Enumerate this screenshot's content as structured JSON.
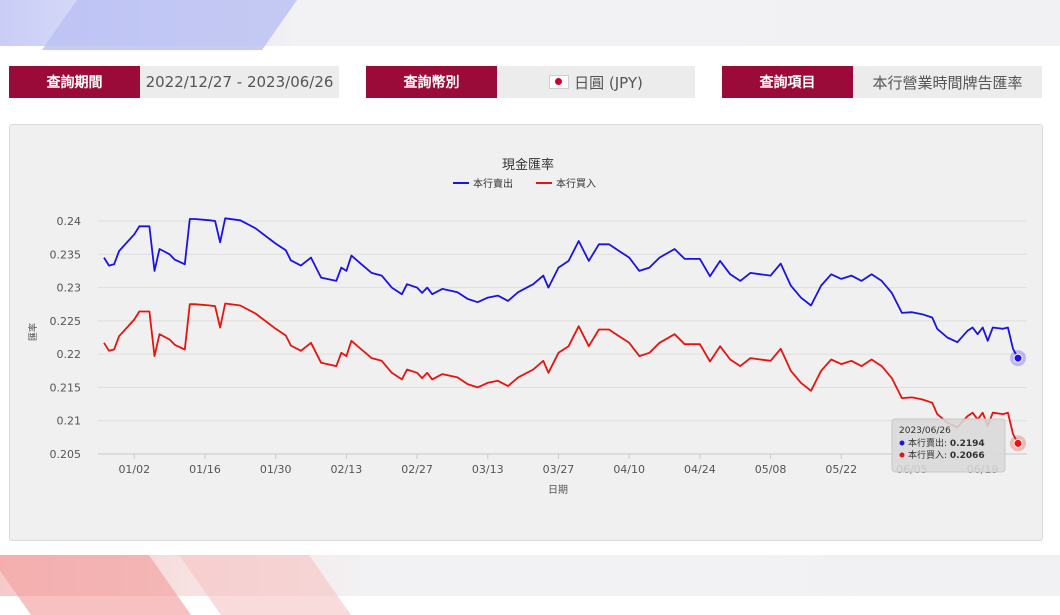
{
  "query": {
    "period_label": "查詢期間",
    "period_value": "2022/12/27 - 2023/06/26",
    "currency_label": "查詢幣別",
    "currency_value": "日圓 (JPY)",
    "item_label": "查詢項目",
    "item_value": "本行營業時間牌告匯率"
  },
  "colors": {
    "label_bg": "#9b0b3a",
    "sell": "#1a12e8",
    "buy": "#e8130f"
  },
  "chart_data": {
    "type": "line",
    "title": "現金匯率",
    "xlabel": "日期",
    "ylabel": "匯率",
    "ylim": [
      0.205,
      0.24
    ],
    "yticks": [
      "0.24",
      "0.235",
      "0.23",
      "0.225",
      "0.22",
      "0.215",
      "0.21",
      "0.205"
    ],
    "xticks": [
      "01/02",
      "01/16",
      "01/30",
      "02/13",
      "02/27",
      "03/13",
      "03/27",
      "04/10",
      "04/24",
      "05/08",
      "05/22",
      "06/05",
      "06/19"
    ],
    "grid": true,
    "legend_position": "top-center",
    "series": [
      {
        "name": "本行賣出",
        "color": "#1a12e8",
        "points": [
          [
            "2022/12/27",
            0.2345
          ],
          [
            "2022/12/28",
            0.2333
          ],
          [
            "2022/12/29",
            0.2335
          ],
          [
            "2022/12/30",
            0.2355
          ],
          [
            "2023/01/02",
            0.238
          ],
          [
            "2023/01/03",
            0.2392
          ],
          [
            "2023/01/05",
            0.2392
          ],
          [
            "2023/01/06",
            0.2325
          ],
          [
            "2023/01/07",
            0.2358
          ],
          [
            "2023/01/09",
            0.235
          ],
          [
            "2023/01/10",
            0.2342
          ],
          [
            "2023/01/12",
            0.2335
          ],
          [
            "2023/01/13",
            0.2403
          ],
          [
            "2023/01/14",
            0.2403
          ],
          [
            "2023/01/17",
            0.2401
          ],
          [
            "2023/01/18",
            0.24
          ],
          [
            "2023/01/19",
            0.2368
          ],
          [
            "2023/01/20",
            0.2404
          ],
          [
            "2023/01/23",
            0.2401
          ],
          [
            "2023/01/26",
            0.2389
          ],
          [
            "2023/01/30",
            0.2366
          ],
          [
            "2023/02/01",
            0.2356
          ],
          [
            "2023/02/02",
            0.2341
          ],
          [
            "2023/02/04",
            0.2333
          ],
          [
            "2023/02/06",
            0.2345
          ],
          [
            "2023/02/08",
            0.2315
          ],
          [
            "2023/02/11",
            0.231
          ],
          [
            "2023/02/12",
            0.233
          ],
          [
            "2023/02/13",
            0.2325
          ],
          [
            "2023/02/14",
            0.2348
          ],
          [
            "2023/02/16",
            0.2335
          ],
          [
            "2023/02/18",
            0.2322
          ],
          [
            "2023/02/20",
            0.2318
          ],
          [
            "2023/02/22",
            0.23
          ],
          [
            "2023/02/24",
            0.229
          ],
          [
            "2023/02/25",
            0.2305
          ],
          [
            "2023/02/27",
            0.23
          ],
          [
            "2023/02/28",
            0.2292
          ],
          [
            "2023/03/01",
            0.23
          ],
          [
            "2023/03/02",
            0.229
          ],
          [
            "2023/03/04",
            0.2298
          ],
          [
            "2023/03/07",
            0.2293
          ],
          [
            "2023/03/09",
            0.2283
          ],
          [
            "2023/03/11",
            0.2278
          ],
          [
            "2023/03/13",
            0.2285
          ],
          [
            "2023/03/15",
            0.2288
          ],
          [
            "2023/03/17",
            0.228
          ],
          [
            "2023/03/19",
            0.2293
          ],
          [
            "2023/03/22",
            0.2305
          ],
          [
            "2023/03/24",
            0.2318
          ],
          [
            "2023/03/25",
            0.23
          ],
          [
            "2023/03/27",
            0.233
          ],
          [
            "2023/03/29",
            0.234
          ],
          [
            "2023/03/31",
            0.237
          ],
          [
            "2023/04/02",
            0.234
          ],
          [
            "2023/04/04",
            0.2365
          ],
          [
            "2023/04/06",
            0.2365
          ],
          [
            "2023/04/08",
            0.2355
          ],
          [
            "2023/04/10",
            0.2345
          ],
          [
            "2023/04/12",
            0.2325
          ],
          [
            "2023/04/14",
            0.233
          ],
          [
            "2023/04/16",
            0.2345
          ],
          [
            "2023/04/19",
            0.2358
          ],
          [
            "2023/04/21",
            0.2343
          ],
          [
            "2023/04/24",
            0.2343
          ],
          [
            "2023/04/26",
            0.2317
          ],
          [
            "2023/04/28",
            0.234
          ],
          [
            "2023/04/30",
            0.232
          ],
          [
            "2023/05/02",
            0.231
          ],
          [
            "2023/05/04",
            0.2322
          ],
          [
            "2023/05/06",
            0.232
          ],
          [
            "2023/05/08",
            0.2318
          ],
          [
            "2023/05/10",
            0.2336
          ],
          [
            "2023/05/12",
            0.2303
          ],
          [
            "2023/05/14",
            0.2285
          ],
          [
            "2023/05/16",
            0.2273
          ],
          [
            "2023/05/18",
            0.2303
          ],
          [
            "2023/05/20",
            0.232
          ],
          [
            "2023/05/22",
            0.2313
          ],
          [
            "2023/05/24",
            0.2318
          ],
          [
            "2023/05/26",
            0.231
          ],
          [
            "2023/05/28",
            0.232
          ],
          [
            "2023/05/30",
            0.231
          ],
          [
            "2023/06/01",
            0.2292
          ],
          [
            "2023/06/03",
            0.2262
          ],
          [
            "2023/06/05",
            0.2263
          ],
          [
            "2023/06/07",
            0.226
          ],
          [
            "2023/06/09",
            0.2255
          ],
          [
            "2023/06/10",
            0.2238
          ],
          [
            "2023/06/12",
            0.2225
          ],
          [
            "2023/06/14",
            0.2218
          ],
          [
            "2023/06/16",
            0.2235
          ],
          [
            "2023/06/17",
            0.224
          ],
          [
            "2023/06/18",
            0.223
          ],
          [
            "2023/06/19",
            0.224
          ],
          [
            "2023/06/20",
            0.222
          ],
          [
            "2023/06/21",
            0.224
          ],
          [
            "2023/06/23",
            0.2238
          ],
          [
            "2023/06/24",
            0.224
          ],
          [
            "2023/06/25",
            0.2208
          ],
          [
            "2023/06/26",
            0.2194
          ]
        ]
      },
      {
        "name": "本行買入",
        "color": "#e8130f",
        "points": [
          [
            "2022/12/27",
            0.2217
          ],
          [
            "2022/12/28",
            0.2205
          ],
          [
            "2022/12/29",
            0.2207
          ],
          [
            "2022/12/30",
            0.2227
          ],
          [
            "2023/01/02",
            0.2252
          ],
          [
            "2023/01/03",
            0.2264
          ],
          [
            "2023/01/05",
            0.2264
          ],
          [
            "2023/01/06",
            0.2197
          ],
          [
            "2023/01/07",
            0.223
          ],
          [
            "2023/01/09",
            0.2222
          ],
          [
            "2023/01/10",
            0.2214
          ],
          [
            "2023/01/12",
            0.2207
          ],
          [
            "2023/01/13",
            0.2275
          ],
          [
            "2023/01/14",
            0.2275
          ],
          [
            "2023/01/17",
            0.2273
          ],
          [
            "2023/01/18",
            0.2272
          ],
          [
            "2023/01/19",
            0.224
          ],
          [
            "2023/01/20",
            0.2276
          ],
          [
            "2023/01/23",
            0.2273
          ],
          [
            "2023/01/26",
            0.2261
          ],
          [
            "2023/01/30",
            0.2238
          ],
          [
            "2023/02/01",
            0.2228
          ],
          [
            "2023/02/02",
            0.2213
          ],
          [
            "2023/02/04",
            0.2205
          ],
          [
            "2023/02/06",
            0.2217
          ],
          [
            "2023/02/08",
            0.2187
          ],
          [
            "2023/02/11",
            0.2182
          ],
          [
            "2023/02/12",
            0.2202
          ],
          [
            "2023/02/13",
            0.2197
          ],
          [
            "2023/02/14",
            0.222
          ],
          [
            "2023/02/16",
            0.2207
          ],
          [
            "2023/02/18",
            0.2194
          ],
          [
            "2023/02/20",
            0.219
          ],
          [
            "2023/02/22",
            0.2172
          ],
          [
            "2023/02/24",
            0.2162
          ],
          [
            "2023/02/25",
            0.2177
          ],
          [
            "2023/02/27",
            0.2172
          ],
          [
            "2023/02/28",
            0.2164
          ],
          [
            "2023/03/01",
            0.2172
          ],
          [
            "2023/03/02",
            0.2162
          ],
          [
            "2023/03/04",
            0.217
          ],
          [
            "2023/03/07",
            0.2165
          ],
          [
            "2023/03/09",
            0.2155
          ],
          [
            "2023/03/11",
            0.215
          ],
          [
            "2023/03/13",
            0.2157
          ],
          [
            "2023/03/15",
            0.216
          ],
          [
            "2023/03/17",
            0.2152
          ],
          [
            "2023/03/19",
            0.2165
          ],
          [
            "2023/03/22",
            0.2177
          ],
          [
            "2023/03/24",
            0.219
          ],
          [
            "2023/03/25",
            0.2172
          ],
          [
            "2023/03/27",
            0.2202
          ],
          [
            "2023/03/29",
            0.2212
          ],
          [
            "2023/03/31",
            0.2242
          ],
          [
            "2023/04/02",
            0.2212
          ],
          [
            "2023/04/04",
            0.2237
          ],
          [
            "2023/04/06",
            0.2237
          ],
          [
            "2023/04/08",
            0.2227
          ],
          [
            "2023/04/10",
            0.2217
          ],
          [
            "2023/04/12",
            0.2197
          ],
          [
            "2023/04/14",
            0.2202
          ],
          [
            "2023/04/16",
            0.2217
          ],
          [
            "2023/04/19",
            0.223
          ],
          [
            "2023/04/21",
            0.2215
          ],
          [
            "2023/04/24",
            0.2215
          ],
          [
            "2023/04/26",
            0.2189
          ],
          [
            "2023/04/28",
            0.2212
          ],
          [
            "2023/04/30",
            0.2192
          ],
          [
            "2023/05/02",
            0.2182
          ],
          [
            "2023/05/04",
            0.2194
          ],
          [
            "2023/05/06",
            0.2192
          ],
          [
            "2023/05/08",
            0.219
          ],
          [
            "2023/05/10",
            0.2208
          ],
          [
            "2023/05/12",
            0.2175
          ],
          [
            "2023/05/14",
            0.2157
          ],
          [
            "2023/05/16",
            0.2145
          ],
          [
            "2023/05/18",
            0.2175
          ],
          [
            "2023/05/20",
            0.2192
          ],
          [
            "2023/05/22",
            0.2185
          ],
          [
            "2023/05/24",
            0.219
          ],
          [
            "2023/05/26",
            0.2182
          ],
          [
            "2023/05/28",
            0.2192
          ],
          [
            "2023/05/30",
            0.2182
          ],
          [
            "2023/06/01",
            0.2164
          ],
          [
            "2023/06/03",
            0.2134
          ],
          [
            "2023/06/05",
            0.2135
          ],
          [
            "2023/06/07",
            0.2132
          ],
          [
            "2023/06/09",
            0.2127
          ],
          [
            "2023/06/10",
            0.211
          ],
          [
            "2023/06/12",
            0.2097
          ],
          [
            "2023/06/14",
            0.209
          ],
          [
            "2023/06/16",
            0.2107
          ],
          [
            "2023/06/17",
            0.2112
          ],
          [
            "2023/06/18",
            0.2102
          ],
          [
            "2023/06/19",
            0.2112
          ],
          [
            "2023/06/20",
            0.2092
          ],
          [
            "2023/06/21",
            0.2112
          ],
          [
            "2023/06/23",
            0.211
          ],
          [
            "2023/06/24",
            0.2112
          ],
          [
            "2023/06/25",
            0.208
          ],
          [
            "2023/06/26",
            0.2066
          ]
        ]
      }
    ],
    "tooltip": {
      "date": "2023/06/26",
      "rows": [
        {
          "name": "本行賣出",
          "sep": ": ",
          "value": "0.2194",
          "color": "#1a12e8"
        },
        {
          "name": "本行買入",
          "sep": ": ",
          "value": "0.2066",
          "color": "#e8130f"
        }
      ]
    }
  }
}
